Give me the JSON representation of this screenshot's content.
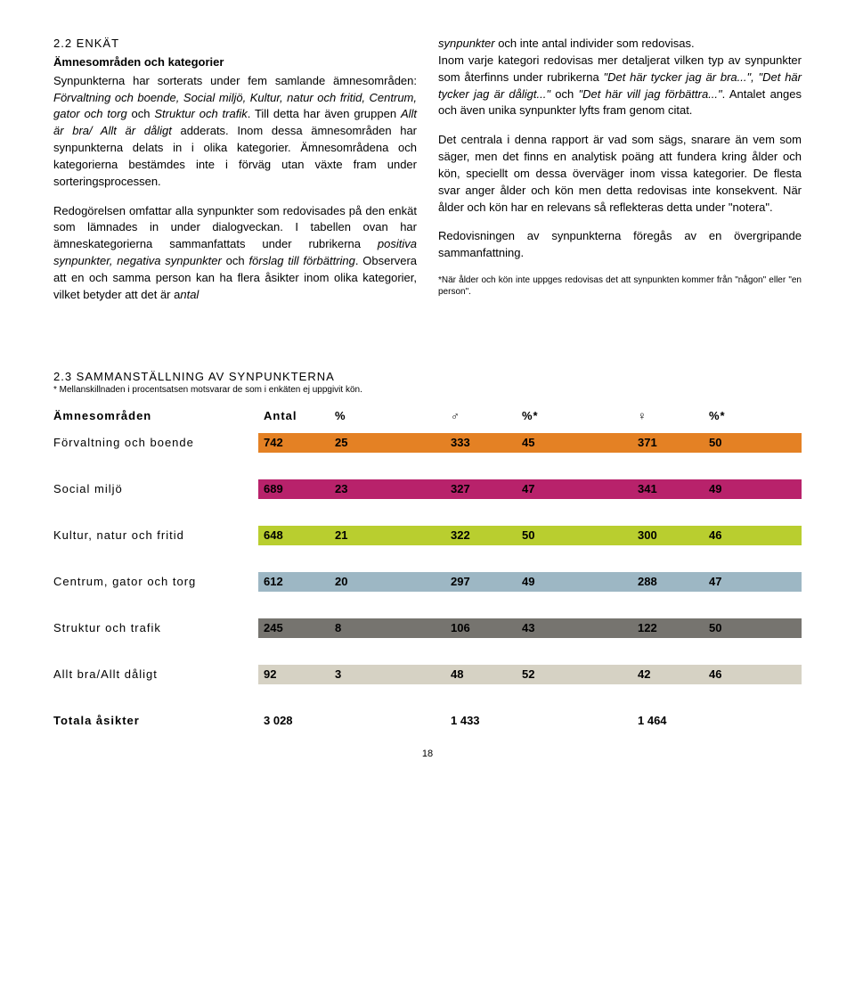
{
  "left": {
    "section_num": "2.2 ENKÄT",
    "subheading": "Ämnesområden och kategorier",
    "para1_a": "Synpunkterna har sorterats under fem samlande ämnesområden: ",
    "para1_i": "Förvaltning och boende, Social miljö, Kultur, natur och fritid, Centrum, gator och torg ",
    "para1_b": "och ",
    "para1_i2": "Struktur och trafik",
    "para1_c": ". Till detta har även gruppen ",
    "para1_i3": "Allt är bra/ Allt är dåligt ",
    "para1_d": "adderats. Inom dessa ämnesområden har synpunkterna delats in i olika kategorier. Ämnesområdena och kategorierna bestämdes inte i förväg utan växte fram under sorteringsprocessen.",
    "para2_a": "Redogörelsen omfattar alla synpunkter som redovisades på den enkät som lämnades in under dialogveckan. I tabellen ovan har ämneskategorierna sammanfattats under rubrikerna ",
    "para2_i1": "positiva synpunkter, negativa synpunkter ",
    "para2_b": "och ",
    "para2_i2": "förslag till förbättring",
    "para2_c": ". Observera att en och samma person kan ha flera åsikter inom olika kategorier, vilket betyder att det är a",
    "para2_i3": "ntal"
  },
  "right": {
    "para1_i1": "synpunkter ",
    "para1_a": "och inte antal individer som redovisas.",
    "para2_a": "Inom varje kategori redovisas mer detaljerat vilken typ av synpunkter som återfinns under rubrikerna ",
    "para2_i1": "\"Det här tycker jag är bra...\", \"Det här tycker jag är dåligt...\" ",
    "para2_b": "och ",
    "para2_i2": "\"Det här vill jag förbättra...\"",
    "para2_c": ". Antalet anges och även unika synpunkter lyfts fram genom citat.",
    "para3": "Det centrala i denna rapport är vad som sägs, snarare än vem som säger, men det finns en analytisk poäng att fundera kring ålder och kön, speciellt om dessa överväger inom vissa kategorier. De flesta svar anger ålder och kön men detta redovisas inte konsekvent. När ålder och kön har en relevans så reflekteras detta under \"notera\".",
    "para4": "Redovisningen av synpunkterna föregås av en övergripande sammanfattning.",
    "footnote": "*När ålder och kön inte uppges redovisas det att synpunkten kommer från \"någon\" eller \"en person\"."
  },
  "table": {
    "title": "2.3 SAMMANSTÄLLNING AV SYNPUNKTERNA",
    "note": "* Mellanskillnaden i procentsatsen motsvarar de som i enkäten ej uppgivit kön.",
    "headers": {
      "col1": "Ämnesområden",
      "col2": "Antal",
      "col3": "%",
      "col4": "♂",
      "col5": "%*",
      "col6": "♀",
      "col7": "%*"
    },
    "rows": [
      {
        "label": "Förvaltning och boende",
        "antal": "742",
        "pct1": "25",
        "male": "333",
        "pct2": "45",
        "fem": "371",
        "pct3": "50",
        "color": "#e48124"
      },
      {
        "label": "Social miljö",
        "antal": "689",
        "pct1": "23",
        "male": "327",
        "pct2": "47",
        "fem": "341",
        "pct3": "49",
        "color": "#b8226b"
      },
      {
        "label": "Kultur, natur och fritid",
        "antal": "648",
        "pct1": "21",
        "male": "322",
        "pct2": "50",
        "fem": "300",
        "pct3": "46",
        "color": "#b9ce2f"
      },
      {
        "label": "Centrum, gator och torg",
        "antal": "612",
        "pct1": "20",
        "male": "297",
        "pct2": "49",
        "fem": "288",
        "pct3": "47",
        "color": "#9db7c4"
      },
      {
        "label": "Struktur och trafik",
        "antal": "245",
        "pct1": "8",
        "male": "106",
        "pct2": "43",
        "fem": "122",
        "pct3": "50",
        "color": "#76746f"
      },
      {
        "label": "Allt bra/Allt dåligt",
        "antal": "92",
        "pct1": "3",
        "male": "48",
        "pct2": "52",
        "fem": "42",
        "pct3": "46",
        "color": "#d6d2c4"
      }
    ],
    "totals": {
      "label": "Totala åsikter",
      "antal": "3 028",
      "male": "1 433",
      "fem": "1 464"
    }
  },
  "page_number": "18"
}
